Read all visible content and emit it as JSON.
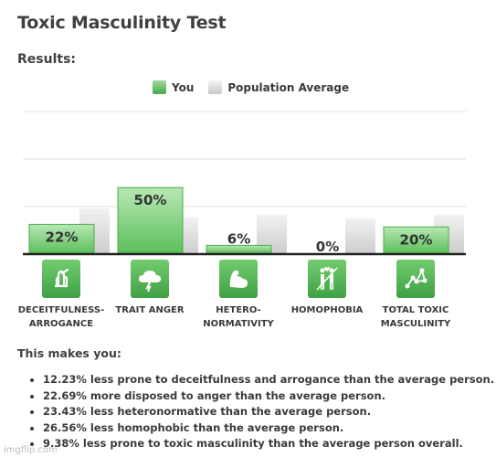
{
  "title": "Toxic Masculinity Test",
  "results_label": "Results:",
  "legend": {
    "you": "You",
    "population": "Population Average"
  },
  "colors": {
    "you": "#5bbd5c",
    "population": "#d4d4d4",
    "icon_bg": "#4db14e",
    "axis": "#222222",
    "grid": "#e2e2e2"
  },
  "chart_data": {
    "type": "bar",
    "categories": [
      "DECEITFULNESS-ARROGANCE",
      "TRAIT ANGER",
      "HETERO-NORMATIVITY",
      "HOMOPHOBIA",
      "TOTAL TOXIC MASCULINITY"
    ],
    "series": [
      {
        "name": "You",
        "values": [
          22,
          50,
          6,
          0,
          20
        ],
        "labels": [
          "22%",
          "50%",
          "6%",
          "0%",
          "20%"
        ]
      },
      {
        "name": "Population Average",
        "values": [
          34.2,
          27.3,
          29.4,
          26.6,
          29.4
        ]
      }
    ],
    "ylim": [
      0,
      100
    ],
    "grid": true,
    "legend_position": "top-center"
  },
  "categories": [
    {
      "label_line1": "DECEITFULNESS-",
      "label_line2": "ARROGANCE",
      "icon": "crossed-fingers-icon"
    },
    {
      "label_line1": "TRAIT ANGER",
      "label_line2": "",
      "icon": "storm-cloud-icon"
    },
    {
      "label_line1": "HETERO-",
      "label_line2": "NORMATIVITY",
      "icon": "flexed-arm-icon"
    },
    {
      "label_line1": "HOMOPHOBIA",
      "label_line2": "",
      "icon": "couple-icon"
    },
    {
      "label_line1": "TOTAL TOXIC",
      "label_line2": "MASCULINITY",
      "icon": "network-icon"
    }
  ],
  "makes_you": "This makes you:",
  "summary": [
    "12.23% less prone to deceitfulness and arrogance than the average person.",
    "22.69% more disposed to anger than the average person.",
    "23.43% less heteronormative than the average person.",
    "26.56% less homophobic than the average person.",
    "9.38% less prone to toxic masculinity than the average person overall."
  ],
  "watermark": "imgflip.com"
}
